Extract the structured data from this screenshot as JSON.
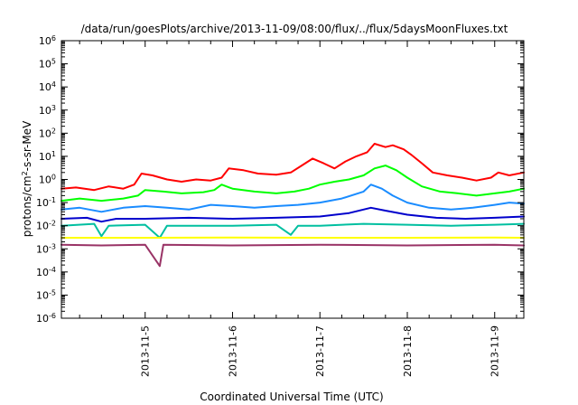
{
  "chart_data": {
    "type": "line",
    "title": "/data/run/goesPlots/archive/2013-11-09/08:00/flux/../flux/5daysMoonFluxes.txt",
    "xlabel": "Coordinated Universal Time (UTC)",
    "ylabel": {
      "base": "protons/cm",
      "sup": "2",
      "rest": "-s-sr-MeV"
    },
    "yscale": "log",
    "ylim": [
      1e-06,
      1000000.0
    ],
    "xlim": [
      "2013-11-04T01:00",
      "2013-11-09T08:00"
    ],
    "grid": false,
    "legend": "none",
    "y_ticks": [
      {
        "v": 1e-06,
        "base": "10",
        "exp": "-6"
      },
      {
        "v": 1e-05,
        "base": "10",
        "exp": "-5"
      },
      {
        "v": 0.0001,
        "base": "10",
        "exp": "-4"
      },
      {
        "v": 0.001,
        "base": "10",
        "exp": "-3"
      },
      {
        "v": 0.01,
        "base": "10",
        "exp": "-2"
      },
      {
        "v": 0.1,
        "base": "10",
        "exp": "-1"
      },
      {
        "v": 1,
        "base": "10",
        "exp": "0"
      },
      {
        "v": 10,
        "base": "10",
        "exp": "1"
      },
      {
        "v": 100,
        "base": "10",
        "exp": "2"
      },
      {
        "v": 1000,
        "base": "10",
        "exp": "3"
      },
      {
        "v": 10000,
        "base": "10",
        "exp": "4"
      },
      {
        "v": 100000,
        "base": "10",
        "exp": "5"
      },
      {
        "v": 1000000,
        "base": "10",
        "exp": "6"
      }
    ],
    "x_ticks": [
      {
        "t": "2013-11-05T00:00",
        "label": "2013-11-5"
      },
      {
        "t": "2013-11-06T00:00",
        "label": "2013-11-6"
      },
      {
        "t": "2013-11-07T00:00",
        "label": "2013-11-7"
      },
      {
        "t": "2013-11-08T00:00",
        "label": "2013-11-8"
      },
      {
        "t": "2013-11-09T00:00",
        "label": "2013-11-9"
      }
    ],
    "series": [
      {
        "color": "#ff0000",
        "points": [
          [
            "2013-11-04T01:00",
            0.4
          ],
          [
            "2013-11-04T05:00",
            0.45
          ],
          [
            "2013-11-04T10:00",
            0.35
          ],
          [
            "2013-11-04T14:00",
            0.5
          ],
          [
            "2013-11-04T18:00",
            0.4
          ],
          [
            "2013-11-04T21:00",
            0.6
          ],
          [
            "2013-11-04T23:00",
            1.8
          ],
          [
            "2013-11-05T02:00",
            1.5
          ],
          [
            "2013-11-05T06:00",
            1.0
          ],
          [
            "2013-11-05T10:00",
            0.8
          ],
          [
            "2013-11-05T14:00",
            1.0
          ],
          [
            "2013-11-05T18:00",
            0.9
          ],
          [
            "2013-11-05T21:00",
            1.2
          ],
          [
            "2013-11-05T23:00",
            3.0
          ],
          [
            "2013-11-06T03:00",
            2.5
          ],
          [
            "2013-11-06T07:00",
            1.8
          ],
          [
            "2013-11-06T12:00",
            1.6
          ],
          [
            "2013-11-06T16:00",
            2.0
          ],
          [
            "2013-11-06T19:00",
            4.0
          ],
          [
            "2013-11-06T22:00",
            8.0
          ],
          [
            "2013-11-07T01:00",
            5.0
          ],
          [
            "2013-11-07T04:00",
            3.0
          ],
          [
            "2013-11-07T07:00",
            6.0
          ],
          [
            "2013-11-07T10:00",
            10.0
          ],
          [
            "2013-11-07T13:00",
            15.0
          ],
          [
            "2013-11-07T15:00",
            35.0
          ],
          [
            "2013-11-07T18:00",
            25.0
          ],
          [
            "2013-11-07T20:00",
            30.0
          ],
          [
            "2013-11-07T23:00",
            20.0
          ],
          [
            "2013-11-08T01:00",
            12.0
          ],
          [
            "2013-11-08T04:00",
            5.0
          ],
          [
            "2013-11-08T07:00",
            2.0
          ],
          [
            "2013-11-08T11:00",
            1.5
          ],
          [
            "2013-11-08T15:00",
            1.2
          ],
          [
            "2013-11-08T19:00",
            0.9
          ],
          [
            "2013-11-08T23:00",
            1.2
          ],
          [
            "2013-11-09T01:00",
            2.0
          ],
          [
            "2013-11-09T04:00",
            1.5
          ],
          [
            "2013-11-09T08:00",
            2.0
          ]
        ]
      },
      {
        "color": "#00ff00",
        "points": [
          [
            "2013-11-04T01:00",
            0.12
          ],
          [
            "2013-11-04T06:00",
            0.15
          ],
          [
            "2013-11-04T12:00",
            0.12
          ],
          [
            "2013-11-04T18:00",
            0.15
          ],
          [
            "2013-11-04T22:00",
            0.2
          ],
          [
            "2013-11-05T00:00",
            0.35
          ],
          [
            "2013-11-05T05:00",
            0.3
          ],
          [
            "2013-11-05T10:00",
            0.25
          ],
          [
            "2013-11-05T16:00",
            0.28
          ],
          [
            "2013-11-05T19:00",
            0.35
          ],
          [
            "2013-11-05T21:00",
            0.6
          ],
          [
            "2013-11-06T00:00",
            0.4
          ],
          [
            "2013-11-06T06:00",
            0.3
          ],
          [
            "2013-11-06T12:00",
            0.25
          ],
          [
            "2013-11-06T17:00",
            0.3
          ],
          [
            "2013-11-06T21:00",
            0.4
          ],
          [
            "2013-11-07T00:00",
            0.6
          ],
          [
            "2013-11-07T04:00",
            0.8
          ],
          [
            "2013-11-07T08:00",
            1.0
          ],
          [
            "2013-11-07T12:00",
            1.5
          ],
          [
            "2013-11-07T15:00",
            3.0
          ],
          [
            "2013-11-07T18:00",
            4.0
          ],
          [
            "2013-11-07T21:00",
            2.5
          ],
          [
            "2013-11-08T00:00",
            1.2
          ],
          [
            "2013-11-08T04:00",
            0.5
          ],
          [
            "2013-11-08T09:00",
            0.3
          ],
          [
            "2013-11-08T14:00",
            0.25
          ],
          [
            "2013-11-08T19:00",
            0.2
          ],
          [
            "2013-11-09T00:00",
            0.25
          ],
          [
            "2013-11-09T04:00",
            0.3
          ],
          [
            "2013-11-09T08:00",
            0.4
          ]
        ]
      },
      {
        "color": "#1a8cff",
        "points": [
          [
            "2013-11-04T01:00",
            0.05
          ],
          [
            "2013-11-04T06:00",
            0.06
          ],
          [
            "2013-11-04T12:00",
            0.04
          ],
          [
            "2013-11-04T18:00",
            0.06
          ],
          [
            "2013-11-05T00:00",
            0.07
          ],
          [
            "2013-11-05T06:00",
            0.06
          ],
          [
            "2013-11-05T12:00",
            0.05
          ],
          [
            "2013-11-05T18:00",
            0.08
          ],
          [
            "2013-11-06T00:00",
            0.07
          ],
          [
            "2013-11-06T06:00",
            0.06
          ],
          [
            "2013-11-06T12:00",
            0.07
          ],
          [
            "2013-11-06T18:00",
            0.08
          ],
          [
            "2013-11-07T00:00",
            0.1
          ],
          [
            "2013-11-07T06:00",
            0.15
          ],
          [
            "2013-11-07T12:00",
            0.3
          ],
          [
            "2013-11-07T14:00",
            0.6
          ],
          [
            "2013-11-07T17:00",
            0.4
          ],
          [
            "2013-11-07T20:00",
            0.2
          ],
          [
            "2013-11-08T00:00",
            0.1
          ],
          [
            "2013-11-08T06:00",
            0.06
          ],
          [
            "2013-11-08T12:00",
            0.05
          ],
          [
            "2013-11-08T18:00",
            0.06
          ],
          [
            "2013-11-09T00:00",
            0.08
          ],
          [
            "2013-11-09T04:00",
            0.1
          ],
          [
            "2013-11-09T08:00",
            0.09
          ]
        ]
      },
      {
        "color": "#0000cc",
        "points": [
          [
            "2013-11-04T01:00",
            0.02
          ],
          [
            "2013-11-04T08:00",
            0.022
          ],
          [
            "2013-11-04T12:00",
            0.015
          ],
          [
            "2013-11-04T16:00",
            0.02
          ],
          [
            "2013-11-05T00:00",
            0.02
          ],
          [
            "2013-11-05T12:00",
            0.022
          ],
          [
            "2013-11-06T00:00",
            0.02
          ],
          [
            "2013-11-06T12:00",
            0.022
          ],
          [
            "2013-11-07T00:00",
            0.025
          ],
          [
            "2013-11-07T08:00",
            0.035
          ],
          [
            "2013-11-07T14:00",
            0.06
          ],
          [
            "2013-11-07T18:00",
            0.045
          ],
          [
            "2013-11-08T00:00",
            0.03
          ],
          [
            "2013-11-08T08:00",
            0.022
          ],
          [
            "2013-11-08T16:00",
            0.02
          ],
          [
            "2013-11-09T00:00",
            0.022
          ],
          [
            "2013-11-09T08:00",
            0.025
          ]
        ]
      },
      {
        "color": "#00bfa0",
        "points": [
          [
            "2013-11-04T01:00",
            0.01
          ],
          [
            "2013-11-04T10:00",
            0.012
          ],
          [
            "2013-11-04T12:00",
            0.0035
          ],
          [
            "2013-11-04T14:00",
            0.01
          ],
          [
            "2013-11-05T00:00",
            0.011
          ],
          [
            "2013-11-05T04:00",
            0.003
          ],
          [
            "2013-11-05T06:00",
            0.01
          ],
          [
            "2013-11-06T00:00",
            0.01
          ],
          [
            "2013-11-06T12:00",
            0.011
          ],
          [
            "2013-11-06T16:00",
            0.004
          ],
          [
            "2013-11-06T18:00",
            0.01
          ],
          [
            "2013-11-07T00:00",
            0.01
          ],
          [
            "2013-11-07T12:00",
            0.012
          ],
          [
            "2013-11-08T00:00",
            0.011
          ],
          [
            "2013-11-08T12:00",
            0.01
          ],
          [
            "2013-11-09T00:00",
            0.011
          ],
          [
            "2013-11-09T08:00",
            0.012
          ]
        ]
      },
      {
        "color": "#ffff00",
        "points": [
          [
            "2013-11-04T01:00",
            0.003
          ],
          [
            "2013-11-05T00:00",
            0.003
          ],
          [
            "2013-11-06T00:00",
            0.0031
          ],
          [
            "2013-11-07T00:00",
            0.003
          ],
          [
            "2013-11-08T00:00",
            0.003
          ],
          [
            "2013-11-09T00:00",
            0.0031
          ],
          [
            "2013-11-09T08:00",
            0.003
          ]
        ]
      },
      {
        "color": "#993366",
        "points": [
          [
            "2013-11-04T01:00",
            0.0015
          ],
          [
            "2013-11-04T12:00",
            0.0014
          ],
          [
            "2013-11-05T00:00",
            0.0015
          ],
          [
            "2013-11-05T04:00",
            0.00018
          ],
          [
            "2013-11-05T05:00",
            0.0015
          ],
          [
            "2013-11-06T00:00",
            0.0014
          ],
          [
            "2013-11-07T00:00",
            0.0015
          ],
          [
            "2013-11-08T00:00",
            0.0014
          ],
          [
            "2013-11-09T00:00",
            0.0015
          ],
          [
            "2013-11-09T08:00",
            0.0014
          ]
        ]
      }
    ]
  }
}
